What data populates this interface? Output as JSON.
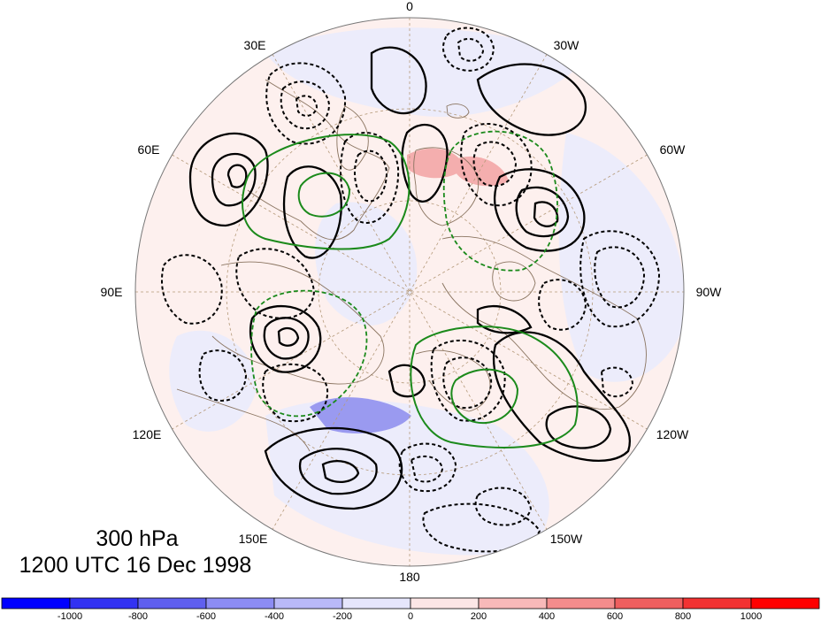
{
  "map": {
    "level": "300 hPa",
    "valid_time": "1200 UTC 16 Dec 1998",
    "longitude_labels": {
      "top": "0",
      "top_right": "30W",
      "upper_right": "60W",
      "right": "90W",
      "lower_right": "120W",
      "bottom_right": "150W",
      "bottom": "180",
      "bottom_left": "150E",
      "lower_left": "120E",
      "left": "90E",
      "upper_left": "60E",
      "top_left": "30E"
    },
    "colorbar": {
      "ticks": [
        "-1000",
        "-800",
        "-600",
        "-400",
        "-200",
        "0",
        "200",
        "400",
        "600",
        "800",
        "1000"
      ],
      "colors": [
        "#0000ff",
        "#3232f2",
        "#5f5fef",
        "#8c8cf4",
        "#b9b9f8",
        "#e6e6fc",
        "#fce6e6",
        "#f8b9b9",
        "#f48c8c",
        "#ef5f5f",
        "#f23232",
        "#ff0000"
      ]
    }
  }
}
